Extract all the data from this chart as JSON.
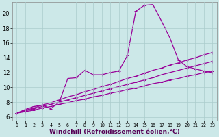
{
  "title": "",
  "xlabel": "Windchill (Refroidissement éolien,°C)",
  "ylabel": "",
  "bg_color": "#cce8e8",
  "grid_color": "#aacccc",
  "line_color": "#990099",
  "xlim": [
    -0.5,
    23.5
  ],
  "ylim": [
    5.5,
    21.5
  ],
  "xticks": [
    0,
    1,
    2,
    3,
    4,
    5,
    6,
    7,
    8,
    9,
    10,
    11,
    12,
    13,
    14,
    15,
    16,
    17,
    18,
    19,
    20,
    21,
    22,
    23
  ],
  "yticks": [
    6,
    8,
    10,
    12,
    14,
    16,
    18,
    20
  ],
  "line_smooth1_x": [
    0,
    1,
    2,
    3,
    4,
    5,
    6,
    7,
    8,
    9,
    10,
    11,
    12,
    13,
    14,
    15,
    16,
    17,
    18,
    19,
    20,
    21,
    22,
    23
  ],
  "line_smooth1_y": [
    6.5,
    6.7,
    6.9,
    7.2,
    7.4,
    7.7,
    7.9,
    8.2,
    8.4,
    8.7,
    8.9,
    9.2,
    9.4,
    9.7,
    9.9,
    10.2,
    10.5,
    10.7,
    11.0,
    11.2,
    11.5,
    11.7,
    12.0,
    12.2
  ],
  "line_smooth2_x": [
    0,
    1,
    2,
    3,
    4,
    5,
    6,
    7,
    8,
    9,
    10,
    11,
    12,
    13,
    14,
    15,
    16,
    17,
    18,
    19,
    20,
    21,
    22,
    23
  ],
  "line_smooth2_y": [
    6.5,
    6.8,
    7.1,
    7.4,
    7.7,
    8.0,
    8.3,
    8.6,
    8.9,
    9.2,
    9.5,
    9.8,
    10.1,
    10.4,
    10.7,
    11.0,
    11.3,
    11.7,
    12.0,
    12.3,
    12.6,
    12.9,
    13.2,
    13.5
  ],
  "line_smooth3_x": [
    0,
    1,
    2,
    3,
    4,
    5,
    6,
    7,
    8,
    9,
    10,
    11,
    12,
    13,
    14,
    15,
    16,
    17,
    18,
    19,
    20,
    21,
    22,
    23
  ],
  "line_smooth3_y": [
    6.5,
    6.9,
    7.2,
    7.6,
    7.9,
    8.3,
    8.7,
    9.0,
    9.4,
    9.7,
    10.1,
    10.4,
    10.8,
    11.2,
    11.5,
    11.9,
    12.3,
    12.6,
    13.0,
    13.3,
    13.7,
    14.0,
    14.4,
    14.7
  ],
  "line_peak_x": [
    0,
    1,
    2,
    3,
    4,
    5,
    6,
    7,
    8,
    9,
    10,
    11,
    12,
    13,
    14,
    15,
    16,
    17,
    18,
    19,
    20,
    21,
    22,
    23
  ],
  "line_peak_y": [
    6.5,
    7.0,
    7.4,
    7.6,
    7.1,
    8.0,
    11.2,
    11.3,
    12.3,
    11.7,
    11.7,
    12.0,
    12.2,
    14.3,
    20.3,
    21.1,
    21.2,
    19.0,
    16.7,
    13.7,
    12.8,
    12.5,
    12.2,
    12.0
  ],
  "marker": "+",
  "markersize": 3,
  "linewidth": 0.9,
  "xlabel_fontsize": 6.5,
  "tick_fontsize": 6
}
